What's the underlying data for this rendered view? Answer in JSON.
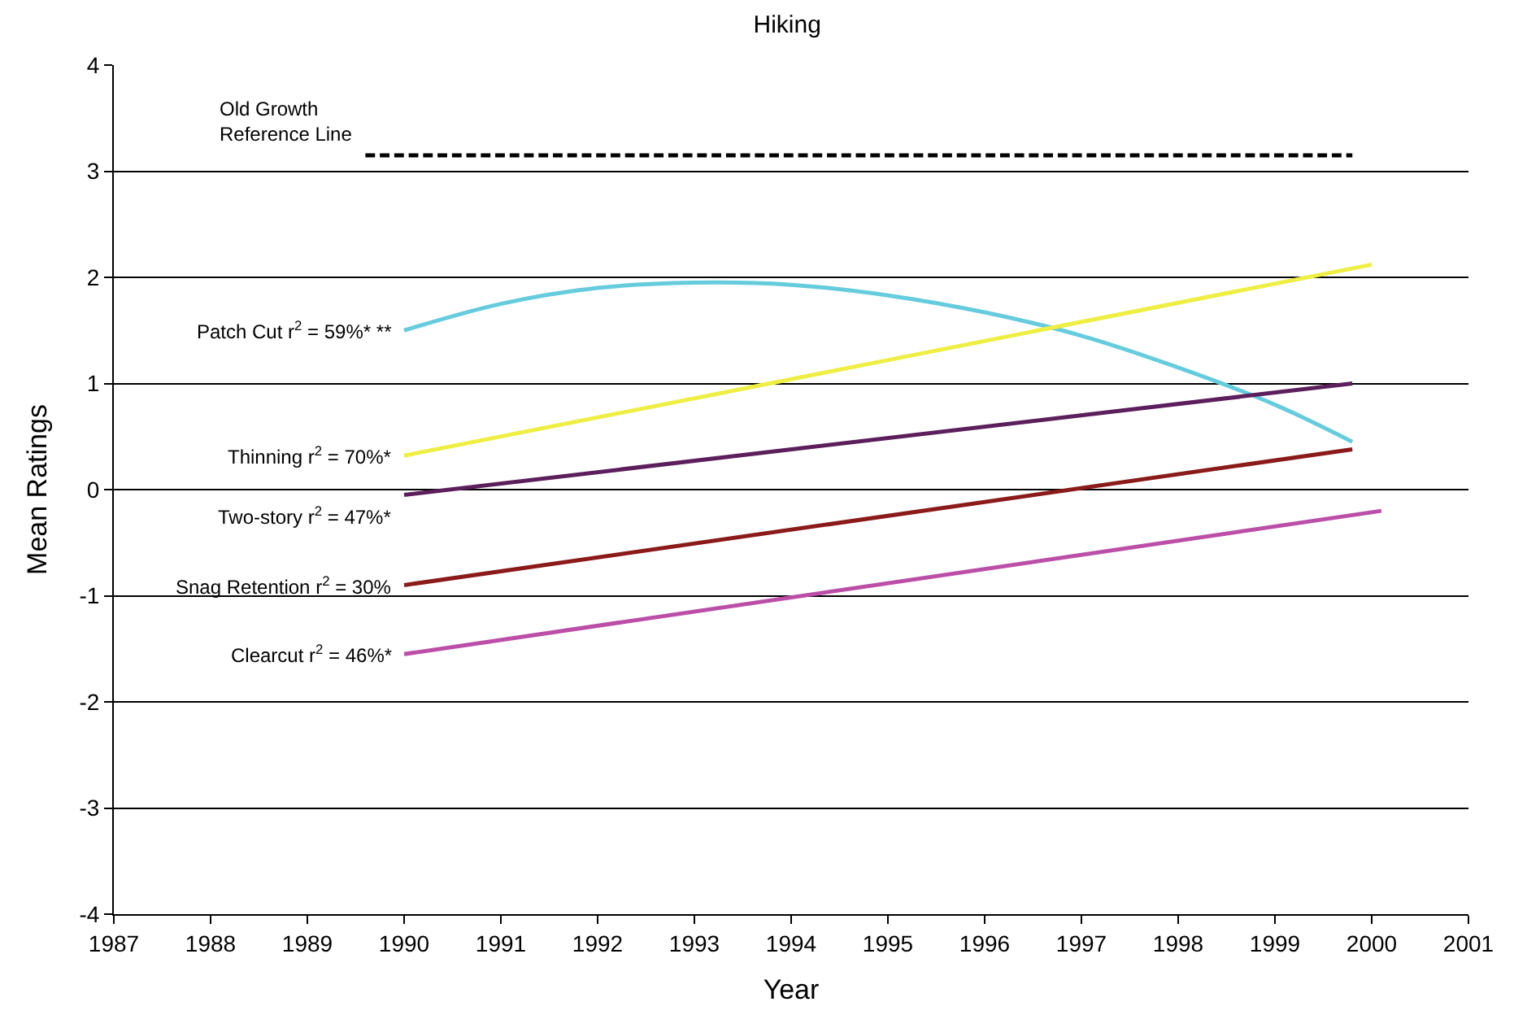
{
  "chart_data": {
    "type": "line",
    "title": "Hiking",
    "xlabel": "Year",
    "ylabel": "Mean Ratings",
    "xlim": [
      1987,
      2001
    ],
    "xticks": [
      1987,
      1988,
      1989,
      1990,
      1991,
      1992,
      1993,
      1994,
      1995,
      1996,
      1997,
      1998,
      1999,
      2000,
      2001
    ],
    "ylim": [
      -4,
      4
    ],
    "yticks": [
      -4,
      -3,
      -2,
      -1,
      0,
      1,
      2,
      3,
      4
    ],
    "grid": "y",
    "legend": false,
    "marker": "none",
    "series": [
      {
        "name": "Old Growth\nReference Line",
        "color": "#000000",
        "line_style": "dashed",
        "x": [
          1989.6,
          1999.8
        ],
        "values": [
          3.15,
          3.15
        ]
      },
      {
        "name": "Patch Cut r$^{2}$ = 59%* **",
        "color": "#66CCDD",
        "line_style": "solid",
        "x": [
          1990,
          1991,
          1992,
          1993,
          1994,
          1995,
          1996,
          1997,
          1998,
          1999,
          1999.8
        ],
        "values": [
          1.5,
          1.75,
          1.9,
          1.95,
          1.93,
          1.83,
          1.67,
          1.45,
          1.15,
          0.8,
          0.45
        ]
      },
      {
        "name": "Thinning r$^{2}$ = 70%*",
        "color": "#EEEE44",
        "line_style": "solid",
        "x": [
          1990,
          2000
        ],
        "values": [
          0.32,
          2.12
        ]
      },
      {
        "name": "Two-story r$^{2}$ = 47%*",
        "color": "#5C1F5C",
        "line_style": "solid",
        "x": [
          1990,
          1999.8
        ],
        "values": [
          -0.05,
          1.0
        ]
      },
      {
        "name": "Snag Retention r$^{2}$ = 30%",
        "color": "#8B1A1A",
        "line_style": "solid",
        "x": [
          1990,
          1999.8
        ],
        "values": [
          -0.9,
          0.38
        ]
      },
      {
        "name": "Clearcut r$^{2}$ = 46%*",
        "color": "#BB4FA8",
        "line_style": "solid",
        "x": [
          1990,
          2000.1
        ],
        "values": [
          -1.55,
          -0.2
        ]
      }
    ]
  }
}
